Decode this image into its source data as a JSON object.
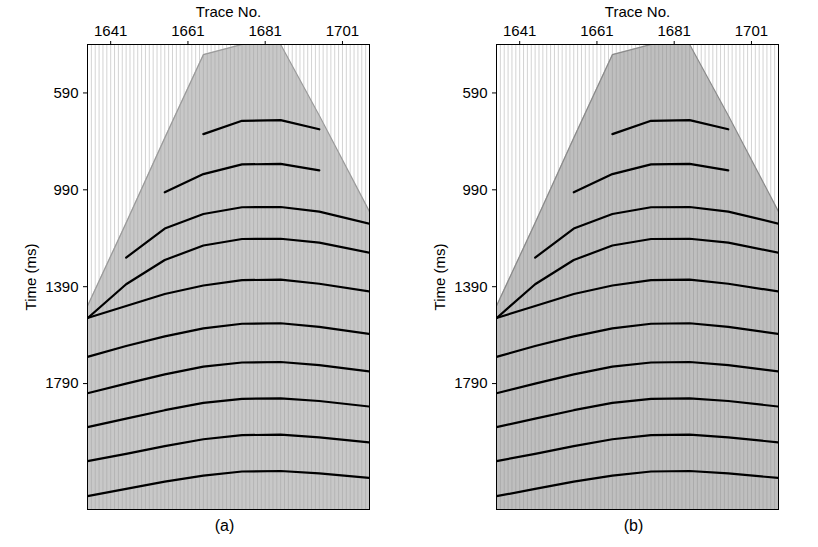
{
  "chart_data": [
    {
      "type": "line",
      "title": "(a)",
      "xlabel": "Trace No.",
      "ylabel": "Time (ms)",
      "xlim": [
        1635,
        1708
      ],
      "xticks": [
        1641,
        1661,
        1681,
        1701
      ],
      "ylim": [
        390,
        2310
      ],
      "yticks": [
        590,
        990,
        1390,
        1790
      ],
      "grid": true,
      "color": "#000000",
      "x": [
        1635,
        1645,
        1655,
        1665,
        1675,
        1685,
        1695,
        1708
      ],
      "series": [
        {
          "type": "area",
          "color": "#9a9a9a",
          "values": [
            1470,
            1127,
            776,
            432,
            390,
            390,
            683,
            1080
          ]
        },
        {
          "values": [
            null,
            null,
            null,
            760,
            705,
            702,
            740,
            null
          ]
        },
        {
          "values": [
            null,
            null,
            1000,
            925,
            885,
            883,
            910,
            null
          ]
        },
        {
          "values": [
            null,
            1270,
            1150,
            1090,
            1062,
            1061,
            1080,
            1130
          ]
        },
        {
          "values": [
            1520,
            1380,
            1280,
            1220,
            1193,
            1192,
            1208,
            1250
          ]
        },
        {
          "values": [
            1519,
            1470,
            1420,
            1385,
            1363,
            1361,
            1378,
            1410
          ]
        },
        {
          "values": [
            1680,
            1635,
            1595,
            1562,
            1543,
            1541,
            1556,
            1585
          ]
        },
        {
          "values": [
            1830,
            1790,
            1752,
            1720,
            1703,
            1701,
            1714,
            1740
          ]
        },
        {
          "values": [
            1970,
            1935,
            1900,
            1870,
            1853,
            1851,
            1862,
            1885
          ]
        },
        {
          "values": [
            2110,
            2080,
            2048,
            2020,
            2003,
            2001,
            2012,
            2033
          ]
        },
        {
          "values": [
            2255,
            2225,
            2195,
            2170,
            2153,
            2151,
            2161,
            2180
          ]
        }
      ]
    },
    {
      "type": "line",
      "title": "(b)",
      "xlabel": "Trace No.",
      "ylabel": "Time (ms)",
      "xlim": [
        1635,
        1708
      ],
      "xticks": [
        1641,
        1661,
        1681,
        1701
      ],
      "ylim": [
        390,
        2310
      ],
      "yticks": [
        590,
        990,
        1390,
        1790
      ],
      "grid": true,
      "color": "#000000",
      "x": [
        1635,
        1645,
        1655,
        1665,
        1675,
        1685,
        1695,
        1708
      ],
      "series": [
        {
          "type": "area",
          "color": "#8a8a8a",
          "values": [
            1470,
            1127,
            776,
            432,
            390,
            390,
            683,
            1080
          ]
        },
        {
          "values": [
            null,
            null,
            null,
            760,
            705,
            702,
            740,
            null
          ]
        },
        {
          "values": [
            null,
            null,
            1000,
            925,
            885,
            883,
            910,
            null
          ]
        },
        {
          "values": [
            null,
            1270,
            1150,
            1090,
            1062,
            1061,
            1080,
            1130
          ]
        },
        {
          "values": [
            1520,
            1380,
            1280,
            1220,
            1193,
            1192,
            1208,
            1250
          ]
        },
        {
          "values": [
            1519,
            1470,
            1420,
            1385,
            1363,
            1361,
            1378,
            1410
          ]
        },
        {
          "values": [
            1680,
            1635,
            1595,
            1562,
            1543,
            1541,
            1556,
            1585
          ]
        },
        {
          "values": [
            1830,
            1790,
            1752,
            1720,
            1703,
            1701,
            1714,
            1740
          ]
        },
        {
          "values": [
            1970,
            1935,
            1900,
            1870,
            1853,
            1851,
            1862,
            1885
          ]
        },
        {
          "values": [
            2110,
            2080,
            2048,
            2020,
            2003,
            2001,
            2012,
            2033
          ]
        },
        {
          "values": [
            2255,
            2225,
            2195,
            2170,
            2153,
            2151,
            2161,
            2180
          ]
        }
      ]
    }
  ]
}
